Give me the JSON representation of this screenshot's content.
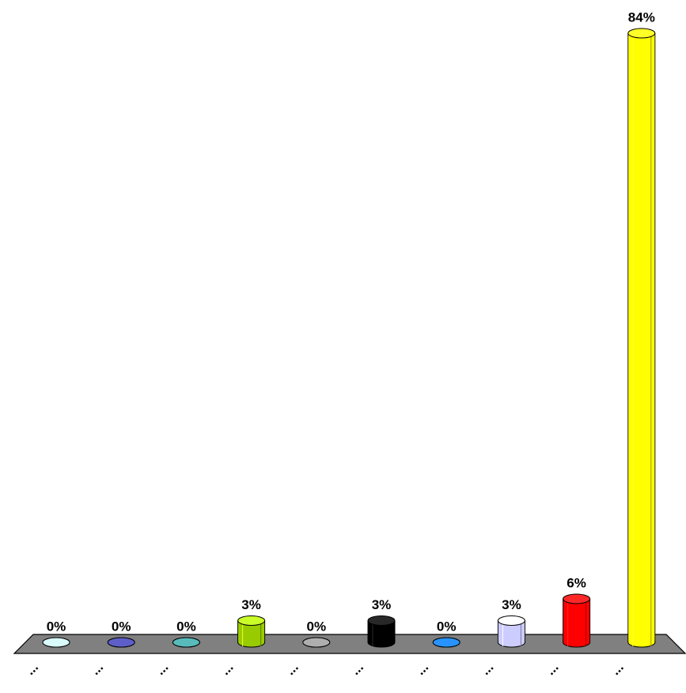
{
  "chart_data": {
    "type": "bar",
    "categories": [
      "...",
      "...",
      "...",
      "...",
      "...",
      "...",
      "...",
      "...",
      "...",
      "..."
    ],
    "values": [
      0,
      0,
      0,
      3,
      0,
      3,
      0,
      3,
      6,
      84
    ],
    "value_labels": [
      "0%",
      "0%",
      "0%",
      "3%",
      "0%",
      "3%",
      "0%",
      "3%",
      "6%",
      "84%"
    ],
    "colors": [
      "#a8c8c8",
      "#333399",
      "#2e8b8b",
      "#99cc00",
      "#808080",
      "#000000",
      "#0066cc",
      "#ccccff",
      "#ff0000",
      "#ffff00"
    ]
  }
}
